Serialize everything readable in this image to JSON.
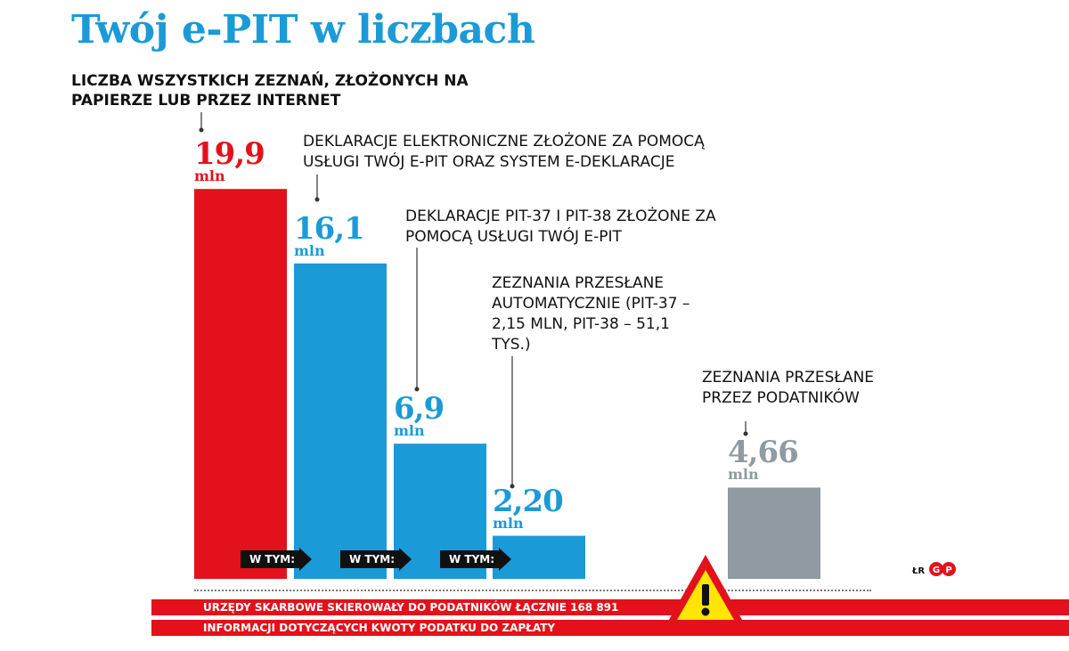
{
  "title": "Twój e-PIT w liczbach",
  "subtitle": "LICZBA WSZYSTKICH ZEZNAŃ, ZŁOŻONYCH NA PAPIERZE LUB PRZEZ INTERNET",
  "colors": {
    "title": "#1b9ad8",
    "red": "#e3111b",
    "blue": "#1b9ad8",
    "gray": "#8f9aa1",
    "black": "#111111"
  },
  "chart_data": {
    "type": "bar",
    "unit": "mln",
    "ylim": [
      0,
      20
    ],
    "grid": false,
    "bars": [
      {
        "value": 19.9,
        "label": "19,9",
        "color": "#e3111b",
        "note": ""
      },
      {
        "value": 16.1,
        "label": "16,1",
        "color": "#1b9ad8",
        "note": "DEKLARACJE ELEKTRONICZNE ZŁOŻONE ZA POMOCĄ USŁUGI TWÓJ E-PIT ORAZ SYSTEM E-DEKLARACJE"
      },
      {
        "value": 6.9,
        "label": "6,9",
        "color": "#1b9ad8",
        "note": "DEKLARACJE PIT-37 I PIT-38 ZŁOŻONE ZA POMOCĄ USŁUGI TWÓJ E-PIT"
      },
      {
        "value": 2.2,
        "label": "2,20",
        "color": "#1b9ad8",
        "note": "ZEZNANIA PRZESŁANE AUTOMATYCZNIE (PIT-37 – 2,15 MLN, PIT-38 – 51,1 TYS.)"
      },
      {
        "value": 4.66,
        "label": "4,66",
        "color": "#8f9aa1",
        "note": "ZEZNANIA PRZESŁANE PRZEZ PODATNIKÓW"
      }
    ],
    "annotations": [
      "W TYM:",
      "W TYM:",
      "W TYM:"
    ]
  },
  "banner": {
    "line1": "URZĘDY SKARBOWE SKIEROWAŁY DO PODATNIKÓW ŁĄCZNIE 168 891",
    "line2": "INFORMACJI DOTYCZĄCYCH KWOTY PODATKU DO ZAPŁATY"
  },
  "credit": "ŁR",
  "warning_icon": "warning-triangle-icon",
  "logo_icon": "publisher-logo-icon"
}
